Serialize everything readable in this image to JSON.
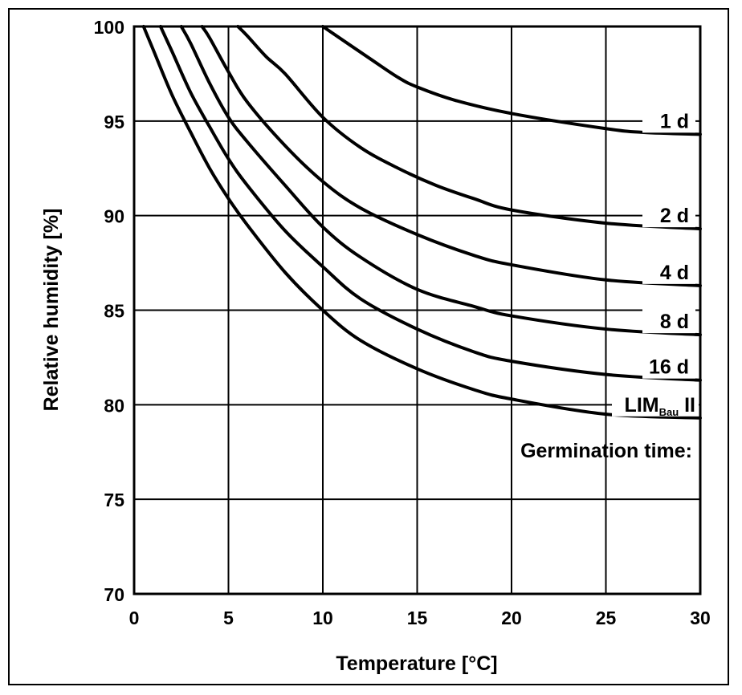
{
  "chart_data": {
    "type": "line",
    "xlabel": "Temperature [°C]",
    "ylabel": "Relative humidity [%]",
    "xlim": [
      0,
      30
    ],
    "ylim": [
      70,
      100
    ],
    "xticks": [
      0,
      5,
      10,
      15,
      20,
      25,
      30
    ],
    "yticks": [
      70,
      75,
      80,
      85,
      90,
      95,
      100
    ],
    "grid": true,
    "annotation": "Germination time:",
    "series": [
      {
        "name": "1 d",
        "points": [
          [
            10,
            100
          ],
          [
            12.5,
            98.3
          ],
          [
            14,
            97.3
          ],
          [
            15,
            96.8
          ],
          [
            17,
            96.1
          ],
          [
            20,
            95.4
          ],
          [
            25,
            94.6
          ],
          [
            27,
            94.4
          ],
          [
            30,
            94.3
          ]
        ]
      },
      {
        "name": "2 d",
        "points": [
          [
            5.5,
            100
          ],
          [
            6,
            99.5
          ],
          [
            7,
            98.4
          ],
          [
            8,
            97.5
          ],
          [
            10,
            95.2
          ],
          [
            12,
            93.6
          ],
          [
            14,
            92.5
          ],
          [
            16,
            91.6
          ],
          [
            18,
            90.9
          ],
          [
            20,
            90.3
          ],
          [
            25,
            89.6
          ],
          [
            30,
            89.3
          ]
        ]
      },
      {
        "name": "4 d",
        "points": [
          [
            3.6,
            100
          ],
          [
            4,
            99.4
          ],
          [
            5,
            97.6
          ],
          [
            6,
            96.0
          ],
          [
            8,
            93.7
          ],
          [
            10,
            91.8
          ],
          [
            12,
            90.4
          ],
          [
            15,
            89.0
          ],
          [
            18,
            87.9
          ],
          [
            20,
            87.4
          ],
          [
            25,
            86.6
          ],
          [
            30,
            86.3
          ]
        ]
      },
      {
        "name": "8 d",
        "points": [
          [
            2.5,
            100
          ],
          [
            3,
            99.1
          ],
          [
            4,
            97.0
          ],
          [
            5,
            95.2
          ],
          [
            6,
            93.9
          ],
          [
            8,
            91.6
          ],
          [
            10,
            89.4
          ],
          [
            12,
            87.8
          ],
          [
            15,
            86.1
          ],
          [
            18,
            85.2
          ],
          [
            20,
            84.7
          ],
          [
            25,
            84.0
          ],
          [
            30,
            83.7
          ]
        ]
      },
      {
        "name": "16 d",
        "points": [
          [
            1.4,
            100
          ],
          [
            2,
            98.7
          ],
          [
            3,
            96.5
          ],
          [
            4,
            94.7
          ],
          [
            5,
            93.0
          ],
          [
            6,
            91.6
          ],
          [
            8,
            89.2
          ],
          [
            10,
            87.3
          ],
          [
            12,
            85.6
          ],
          [
            15,
            84.0
          ],
          [
            18,
            82.8
          ],
          [
            20,
            82.3
          ],
          [
            25,
            81.6
          ],
          [
            30,
            81.3
          ]
        ]
      },
      {
        "name": "LIMBau II",
        "label_main": "LIM",
        "label_sub": "Bau",
        "label_suffix": "II",
        "points": [
          [
            0.5,
            100
          ],
          [
            1,
            98.8
          ],
          [
            2,
            96.4
          ],
          [
            3,
            94.4
          ],
          [
            4,
            92.5
          ],
          [
            5,
            90.9
          ],
          [
            6,
            89.5
          ],
          [
            8,
            87.0
          ],
          [
            10,
            85.0
          ],
          [
            12,
            83.4
          ],
          [
            15,
            81.9
          ],
          [
            18,
            80.8
          ],
          [
            20,
            80.3
          ],
          [
            25,
            79.5
          ],
          [
            30,
            79.3
          ]
        ]
      }
    ]
  }
}
